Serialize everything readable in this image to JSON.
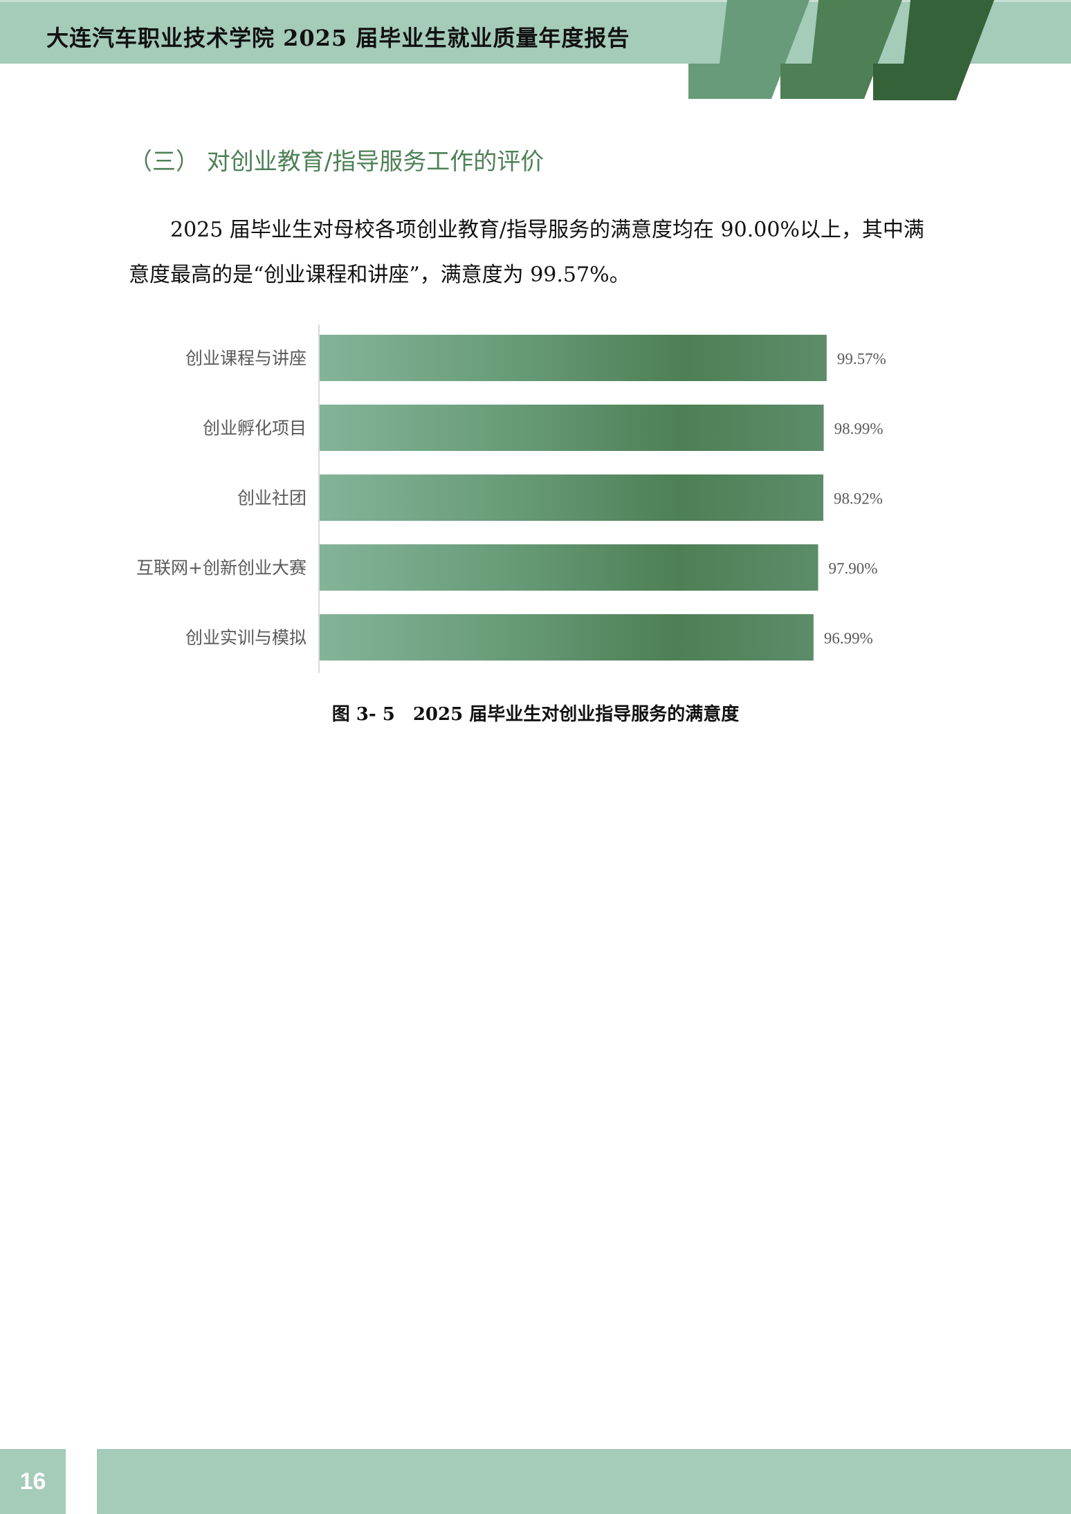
{
  "header": {
    "title": "大连汽车职业技术学院 2025 届毕业生就业质量年度报告",
    "colors": [
      "#a5cbb9",
      "#689b7a",
      "#4e7f55",
      "#356238"
    ]
  },
  "section": {
    "heading": "（三）  对创业教育/指导服务工作的评价",
    "paragraph": "2025 届毕业生对母校各项创业教育/指导服务的满意度均在 90.00%以上，其中满意度最高的是“创业课程和讲座”，满意度为 99.57%。"
  },
  "chart_data": {
    "type": "bar",
    "orientation": "horizontal",
    "categories": [
      "创业课程与讲座",
      "创业孵化项目",
      "创业社团",
      "互联网+创新创业大赛",
      "创业实训与模拟"
    ],
    "values": [
      99.57,
      98.99,
      98.92,
      97.9,
      96.99
    ],
    "value_labels": [
      "99.57%",
      "98.99%",
      "98.92%",
      "97.90%",
      "96.99%"
    ],
    "unit": "%",
    "xlim": [
      0,
      100
    ],
    "grid": false,
    "bar_color": "#5a8c66"
  },
  "caption": "图 3- 5　2025 届毕业生对创业指导服务的满意度",
  "footer": {
    "page_number": "16"
  }
}
